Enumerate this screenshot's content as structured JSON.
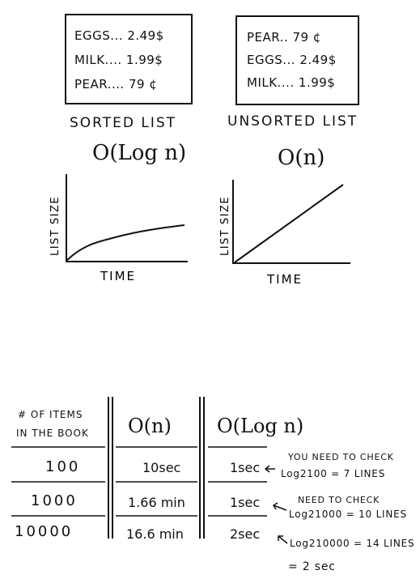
{
  "sorted": {
    "items": [
      "EGGS... 2.49$",
      "MILK.... 1.99$",
      "PEAR.... 79 ¢"
    ],
    "caption": "SORTED LIST",
    "complexity": "O(Log n)",
    "ylabel": "LIST SIZE",
    "xlabel": "TIME"
  },
  "unsorted": {
    "items": [
      "PEAR.. 79 ¢",
      "EGGS... 2.49$",
      "MILK.... 1.99$"
    ],
    "caption": "UNSORTED LIST",
    "complexity": "O(n)",
    "ylabel": "LIST SIZE",
    "xlabel": "TIME"
  },
  "table": {
    "header": {
      "col1_line1": "# OF ITEMS",
      "col1_line2": "IN THE BOOK",
      "col2": "O(n)",
      "col3": "O(Log n)"
    },
    "rows": [
      {
        "items": "100",
        "linear": "10sec",
        "log": "1sec",
        "note_line1": "YOU NEED TO CHECK",
        "note_line2": "Log2100 = 7 LINES"
      },
      {
        "items": "1000",
        "linear": "1.66 min",
        "log": "1sec",
        "note_line1": "NEED TO CHECK",
        "note_line2": "Log21000 = 10 LINES"
      },
      {
        "items": "10000",
        "linear": "16.6 min",
        "log": "2sec",
        "note_line1": "Log210000 = 14 LINES",
        "note_line2": "= 2 sec"
      }
    ]
  },
  "colors": {
    "ink": "#111111",
    "background": "#ffffff"
  }
}
